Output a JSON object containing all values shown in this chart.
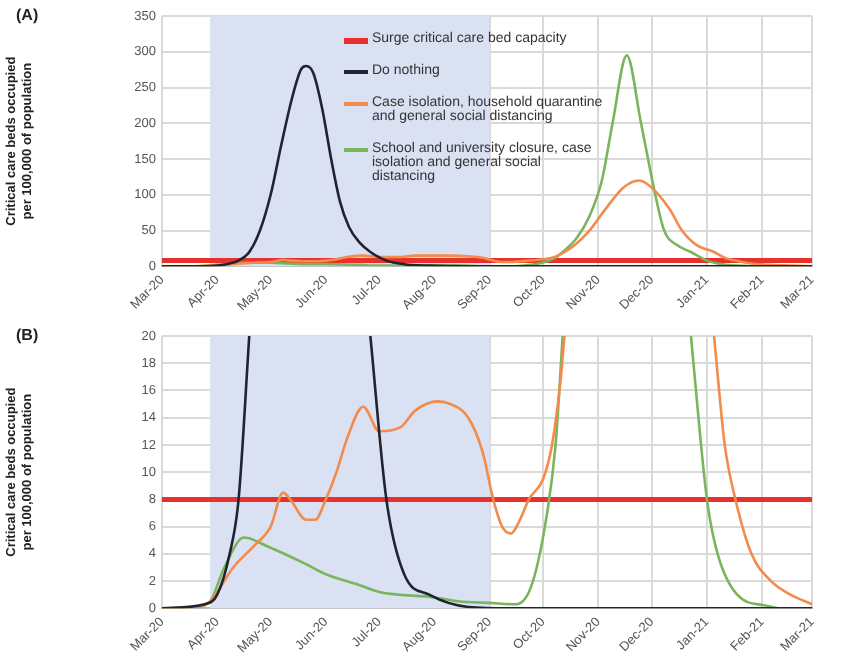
{
  "chart_data": [
    {
      "type": "line",
      "title": "(A)",
      "ylabel": "Critical care beds occupied per 100,000 of population",
      "legend": "top",
      "grid": true,
      "xlim": [
        "2020-03-01",
        "2021-03-01"
      ],
      "xticks": [
        {
          "value": "2020-03-01",
          "label": "Mar-20"
        },
        {
          "value": "2020-04-01",
          "label": "Apr-20"
        },
        {
          "value": "2020-05-01",
          "label": "May-20"
        },
        {
          "value": "2020-06-01",
          "label": "Jun-20"
        },
        {
          "value": "2020-07-01",
          "label": "Jul-20"
        },
        {
          "value": "2020-08-01",
          "label": "Aug-20"
        },
        {
          "value": "2020-09-01",
          "label": "Sep-20"
        },
        {
          "value": "2020-10-01",
          "label": "Oct-20"
        },
        {
          "value": "2020-11-01",
          "label": "Nov-20"
        },
        {
          "value": "2020-12-01",
          "label": "Dec-20"
        },
        {
          "value": "2021-01-01",
          "label": "Jan-21"
        },
        {
          "value": "2021-02-01",
          "label": "Feb-21"
        },
        {
          "value": "2021-03-01",
          "label": "Mar-21"
        }
      ],
      "ylim": [
        0,
        350
      ],
      "yticks": [
        0,
        50,
        100,
        150,
        200,
        250,
        300,
        350
      ],
      "ref_lines": [
        {
          "axis": "y",
          "value": 8,
          "label": "Surge critical care bed capacity",
          "color": "#e8302c"
        }
      ],
      "bands": [
        {
          "axis": "x",
          "from": "2020-03-28",
          "to": "2020-09-01",
          "color": "#d9e1f2"
        }
      ],
      "series": [
        {
          "name": "Do nothing",
          "color": "#1f2430",
          "x": [
            "2020-03-01",
            "2020-03-25",
            "2020-04-01",
            "2020-04-08",
            "2020-04-13",
            "2020-04-19",
            "2020-04-25",
            "2020-05-01",
            "2020-05-07",
            "2020-05-13",
            "2020-05-18",
            "2020-05-21",
            "2020-05-25",
            "2020-05-30",
            "2020-06-04",
            "2020-06-09",
            "2020-06-14",
            "2020-06-20",
            "2020-06-26",
            "2020-07-05",
            "2020-07-15",
            "2020-07-29",
            "2020-08-20",
            "2020-09-15",
            "2021-03-01"
          ],
          "values": [
            0,
            0,
            1,
            4,
            8,
            20,
            50,
            100,
            170,
            235,
            275,
            280,
            270,
            220,
            150,
            90,
            55,
            33,
            20,
            8,
            3,
            1,
            0,
            0,
            0
          ]
        },
        {
          "name": "Case isolation, household quarantine and general social distancing",
          "color": "#f28b4c",
          "x": [
            "2020-03-01",
            "2020-03-20",
            "2020-03-28",
            "2020-04-10",
            "2020-04-21",
            "2020-05-01",
            "2020-05-08",
            "2020-05-12",
            "2020-05-21",
            "2020-05-26",
            "2020-06-01",
            "2020-06-07",
            "2020-06-13",
            "2020-06-22",
            "2020-07-01",
            "2020-07-13",
            "2020-07-21",
            "2020-08-03",
            "2020-08-10",
            "2020-08-20",
            "2020-08-28",
            "2020-09-03",
            "2020-09-08",
            "2020-09-13",
            "2020-09-18",
            "2020-09-23",
            "2020-10-01",
            "2020-10-06",
            "2020-10-11",
            "2020-10-13",
            "2020-10-19",
            "2020-10-27",
            "2020-11-05",
            "2020-11-15",
            "2020-11-24",
            "2020-12-01",
            "2020-12-11",
            "2020-12-18",
            "2020-12-26",
            "2021-01-05",
            "2021-01-11",
            "2021-01-17",
            "2021-01-26",
            "2021-02-06",
            "2021-02-17",
            "2021-03-01"
          ],
          "values": [
            0,
            0,
            1,
            3,
            5,
            6,
            9,
            8,
            7,
            7,
            8,
            10,
            13,
            15,
            13,
            13,
            15,
            15,
            15,
            14,
            12,
            8,
            6,
            6,
            7,
            8,
            10,
            12,
            17,
            20,
            30,
            50,
            80,
            110,
            120,
            110,
            80,
            50,
            30,
            20,
            12,
            8,
            4,
            2,
            1,
            0
          ]
        },
        {
          "name": "School and university closure, case isolation and general social distancing",
          "color": "#7ab55c",
          "x": [
            "2020-03-01",
            "2020-03-20",
            "2020-03-28",
            "2020-04-05",
            "2020-04-16",
            "2020-04-30",
            "2020-05-20",
            "2020-06-01",
            "2020-06-20",
            "2020-07-01",
            "2020-08-01",
            "2020-08-15",
            "2020-09-01",
            "2020-09-15",
            "2020-09-24",
            "2020-10-02",
            "2020-10-08",
            "2020-10-12",
            "2020-10-20",
            "2020-10-27",
            "2020-11-03",
            "2020-11-09",
            "2020-11-17",
            "2020-11-25",
            "2020-12-03",
            "2020-12-08",
            "2020-12-15",
            "2020-12-23",
            "2021-01-01",
            "2021-01-07",
            "2021-01-18",
            "2021-02-03",
            "2021-02-12",
            "2021-03-01"
          ],
          "values": [
            0,
            0,
            1,
            3,
            5,
            5,
            3,
            3,
            2,
            1,
            1,
            1,
            0,
            0,
            2,
            6,
            12,
            20,
            40,
            70,
            120,
            200,
            295,
            200,
            100,
            50,
            30,
            20,
            8,
            4,
            1,
            0,
            0,
            0
          ]
        }
      ]
    },
    {
      "type": "line",
      "title": "(B)",
      "ylabel": "Critical care beds occupied per 100,000 of population",
      "grid": true,
      "xlim": [
        "2020-03-01",
        "2021-03-01"
      ],
      "xticks": [
        {
          "value": "2020-03-01",
          "label": "Mar-20"
        },
        {
          "value": "2020-04-01",
          "label": "Apr-20"
        },
        {
          "value": "2020-05-01",
          "label": "May-20"
        },
        {
          "value": "2020-06-01",
          "label": "Jun-20"
        },
        {
          "value": "2020-07-01",
          "label": "Jul-20"
        },
        {
          "value": "2020-08-01",
          "label": "Aug-20"
        },
        {
          "value": "2020-09-01",
          "label": "Sep-20"
        },
        {
          "value": "2020-10-01",
          "label": "Oct-20"
        },
        {
          "value": "2020-11-01",
          "label": "Nov-20"
        },
        {
          "value": "2020-12-01",
          "label": "Dec-20"
        },
        {
          "value": "2021-01-01",
          "label": "Jan-21"
        },
        {
          "value": "2021-02-01",
          "label": "Feb-21"
        },
        {
          "value": "2021-03-01",
          "label": "Mar-21"
        }
      ],
      "ylim": [
        0,
        20
      ],
      "yticks": [
        0,
        2,
        4,
        6,
        8,
        10,
        12,
        14,
        16,
        18,
        20
      ],
      "ref_lines": [
        {
          "axis": "y",
          "value": 8,
          "color": "#e8302c"
        }
      ],
      "bands": [
        {
          "axis": "x",
          "from": "2020-03-28",
          "to": "2020-09-01",
          "color": "#d9e1f2"
        }
      ],
      "series": [
        {
          "color": "#1f2430",
          "x": [
            "2020-03-01",
            "2020-03-25",
            "2020-04-01",
            "2020-04-08",
            "2020-04-13",
            "2020-04-19",
            "2020-04-25",
            "2020-06-26",
            "2020-07-05",
            "2020-07-15",
            "2020-07-29",
            "2020-08-20",
            "2020-09-15",
            "2021-03-01"
          ],
          "values": [
            0,
            0.3,
            1,
            4,
            8,
            20,
            null,
            20,
            8,
            2.5,
            1,
            0.1,
            0,
            0
          ]
        },
        {
          "color": "#f28b4c",
          "x": [
            "2020-03-01",
            "2020-03-20",
            "2020-03-28",
            "2020-04-10",
            "2020-04-21",
            "2020-05-01",
            "2020-05-08",
            "2020-05-12",
            "2020-05-21",
            "2020-05-26",
            "2020-06-01",
            "2020-06-07",
            "2020-06-13",
            "2020-06-22",
            "2020-07-01",
            "2020-07-13",
            "2020-07-21",
            "2020-08-03",
            "2020-08-10",
            "2020-08-20",
            "2020-08-28",
            "2020-09-03",
            "2020-09-08",
            "2020-09-13",
            "2020-09-18",
            "2020-09-23",
            "2020-10-01",
            "2020-10-06",
            "2020-10-11",
            "2020-10-13",
            "2020-10-19",
            "2021-01-05",
            "2021-01-11",
            "2021-01-17",
            "2021-01-26",
            "2021-02-06",
            "2021-02-17",
            "2021-03-01"
          ],
          "values": [
            0,
            0.1,
            0.5,
            3,
            4.5,
            6,
            8.5,
            8,
            6.5,
            6.5,
            8,
            10,
            12.5,
            14.8,
            13,
            13.3,
            14.5,
            15.2,
            15,
            14,
            11.5,
            8,
            6,
            5.5,
            6.5,
            8,
            9.5,
            12,
            17,
            20,
            null,
            20,
            12,
            8,
            4,
            2,
            1,
            0.3
          ]
        },
        {
          "color": "#7ab55c",
          "x": [
            "2020-03-01",
            "2020-03-20",
            "2020-03-28",
            "2020-04-05",
            "2020-04-16",
            "2020-04-30",
            "2020-05-20",
            "2020-06-01",
            "2020-06-20",
            "2020-07-01",
            "2020-08-01",
            "2020-08-15",
            "2020-09-01",
            "2020-09-15",
            "2020-09-24",
            "2020-10-02",
            "2020-10-08",
            "2020-10-12",
            "2020-10-20",
            "2020-12-15",
            "2020-12-23",
            "2021-01-01",
            "2021-01-07",
            "2021-01-18",
            "2021-02-03",
            "2021-02-12",
            "2021-03-01"
          ],
          "values": [
            0,
            0.1,
            0.5,
            3,
            5.2,
            4.5,
            3.3,
            2.5,
            1.7,
            1.2,
            0.8,
            0.5,
            0.4,
            0.3,
            1.5,
            6,
            12,
            20,
            null,
            null,
            20,
            8,
            4,
            1,
            0.2,
            0,
            0
          ]
        }
      ]
    }
  ]
}
